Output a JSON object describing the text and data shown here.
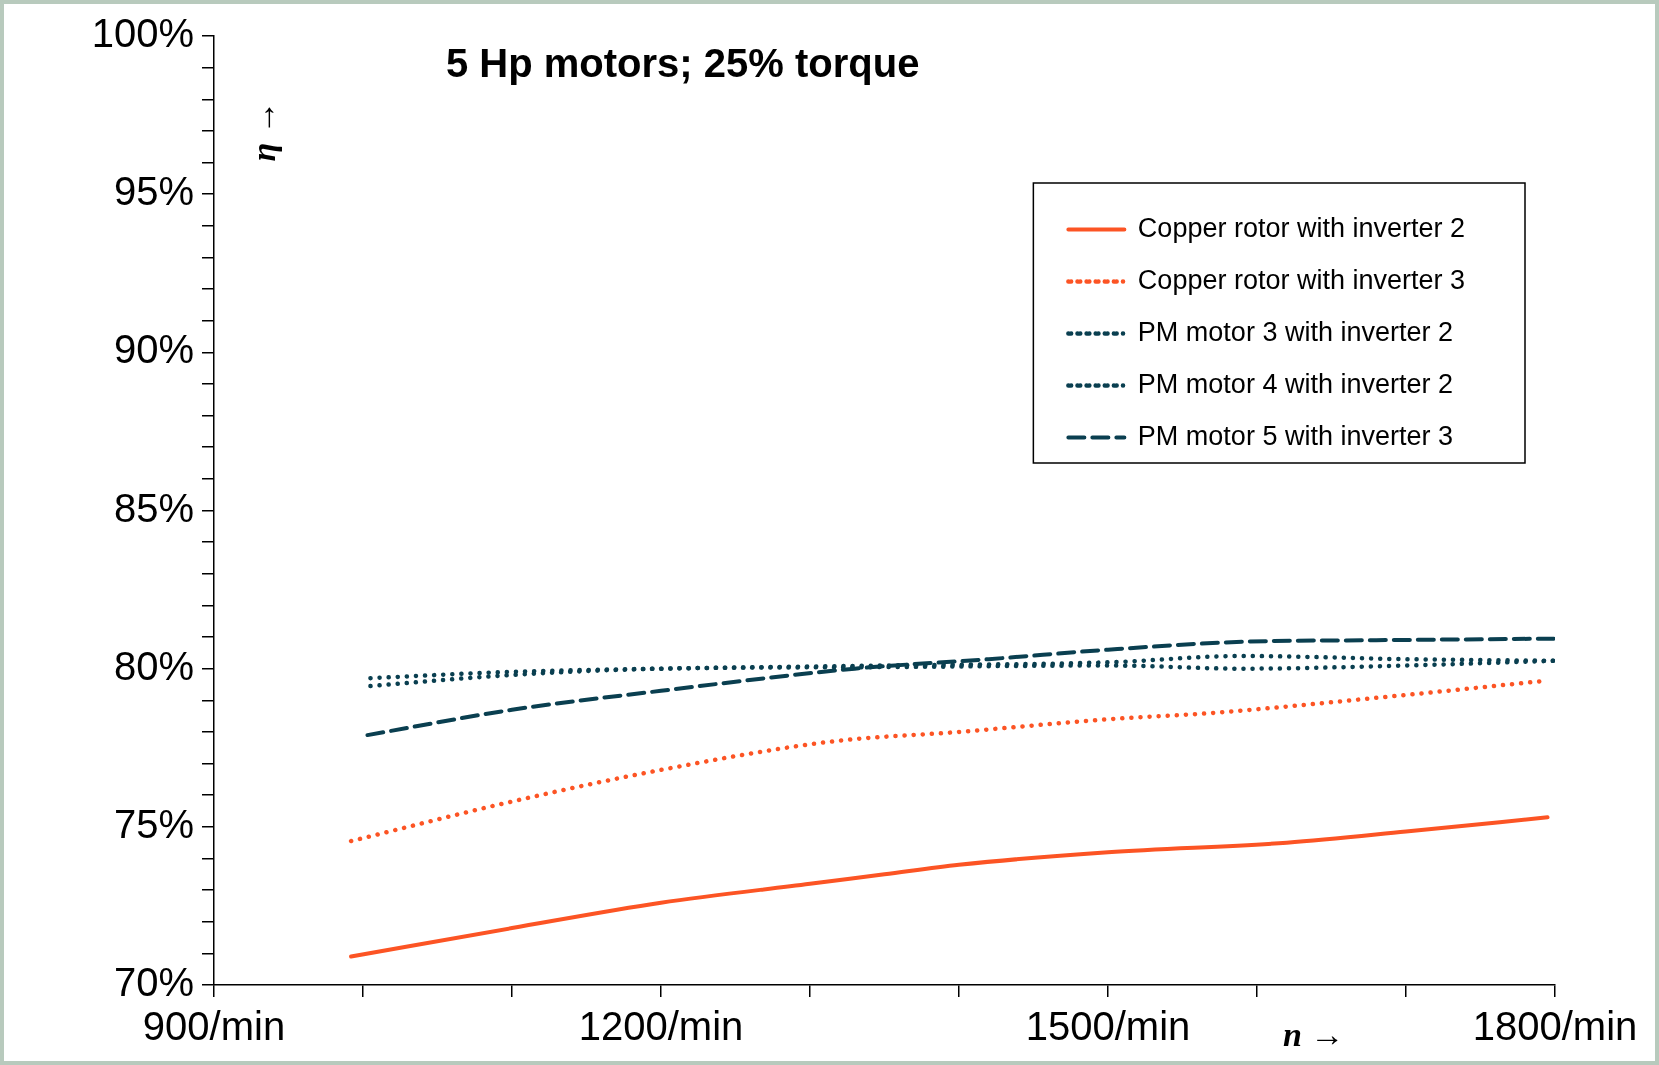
{
  "chart_data": {
    "type": "line",
    "title": "5 Hp motors; 25% torque",
    "xlabel": "n →",
    "ylabel": "η →",
    "xlim": [
      900,
      1800
    ],
    "xticks": [
      {
        "value": 900,
        "label": "900/min"
      },
      {
        "value": 1000,
        "label": null
      },
      {
        "value": 1100,
        "label": null
      },
      {
        "value": 1200,
        "label": "1200/min"
      },
      {
        "value": 1300,
        "label": null
      },
      {
        "value": 1400,
        "label": null
      },
      {
        "value": 1500,
        "label": "1500/min"
      },
      {
        "value": 1600,
        "label": null
      },
      {
        "value": 1700,
        "label": null
      },
      {
        "value": 1800,
        "label": "1800/min"
      }
    ],
    "ylim": [
      70,
      100
    ],
    "yticks": [
      {
        "value": 70,
        "label": "70%"
      },
      {
        "value": 71,
        "label": null
      },
      {
        "value": 72,
        "label": null
      },
      {
        "value": 73,
        "label": null
      },
      {
        "value": 74,
        "label": null
      },
      {
        "value": 75,
        "label": "75%"
      },
      {
        "value": 76,
        "label": null
      },
      {
        "value": 77,
        "label": null
      },
      {
        "value": 78,
        "label": null
      },
      {
        "value": 79,
        "label": null
      },
      {
        "value": 80,
        "label": "80%"
      },
      {
        "value": 81,
        "label": null
      },
      {
        "value": 82,
        "label": null
      },
      {
        "value": 83,
        "label": null
      },
      {
        "value": 84,
        "label": null
      },
      {
        "value": 85,
        "label": "85%"
      },
      {
        "value": 86,
        "label": null
      },
      {
        "value": 87,
        "label": null
      },
      {
        "value": 88,
        "label": null
      },
      {
        "value": 89,
        "label": null
      },
      {
        "value": 90,
        "label": "90%"
      },
      {
        "value": 91,
        "label": null
      },
      {
        "value": 92,
        "label": null
      },
      {
        "value": 93,
        "label": null
      },
      {
        "value": 94,
        "label": null
      },
      {
        "value": 95,
        "label": "95%"
      },
      {
        "value": 96,
        "label": null
      },
      {
        "value": 97,
        "label": null
      },
      {
        "value": 98,
        "label": null
      },
      {
        "value": 99,
        "label": null
      },
      {
        "value": 100,
        "label": "100%"
      }
    ],
    "grid": false,
    "legend": "top right",
    "marker": "none",
    "series": [
      {
        "name": "Copper rotor with inverter 2",
        "color": "#fc5424",
        "line_style": "solid",
        "x": [
          992,
          1100,
          1200,
          1300,
          1350,
          1400,
          1500,
          1620,
          1700,
          1795
        ],
        "values": [
          70.9,
          71.8,
          72.6,
          73.2,
          73.5,
          73.8,
          74.2,
          74.5,
          74.85,
          75.3
        ]
      },
      {
        "name": "Copper rotor with inverter 3",
        "color": "#fc5424",
        "line_style": "dotted",
        "x": [
          992,
          1100,
          1200,
          1315,
          1400,
          1500,
          1570,
          1685,
          1790
        ],
        "values": [
          74.55,
          75.8,
          76.8,
          77.7,
          78.0,
          78.4,
          78.6,
          79.1,
          79.6
        ]
      },
      {
        "name": "PM motor 3 with inverter 2",
        "color": "#0a3f50",
        "line_style": "dotted",
        "x": [
          1005,
          1100,
          1200,
          1350,
          1500,
          1590,
          1700,
          1800
        ],
        "values": [
          79.45,
          79.8,
          80.0,
          80.05,
          80.1,
          80.0,
          80.1,
          80.25
        ]
      },
      {
        "name": "PM motor 4 with inverter 2",
        "color": "#0a3f50",
        "line_style": "dotted",
        "x": [
          1005,
          1100,
          1200,
          1350,
          1500,
          1590,
          1700,
          1800
        ],
        "values": [
          79.7,
          79.9,
          80.0,
          80.1,
          80.2,
          80.4,
          80.3,
          80.25
        ]
      },
      {
        "name": "PM motor 5 with inverter 3",
        "color": "#0a3f50",
        "line_style": "dashed",
        "x": [
          1003,
          1100,
          1200,
          1330,
          1420,
          1500,
          1590,
          1680,
          1800
        ],
        "values": [
          77.9,
          78.7,
          79.3,
          80.0,
          80.3,
          80.6,
          80.85,
          80.9,
          80.95
        ]
      }
    ]
  }
}
